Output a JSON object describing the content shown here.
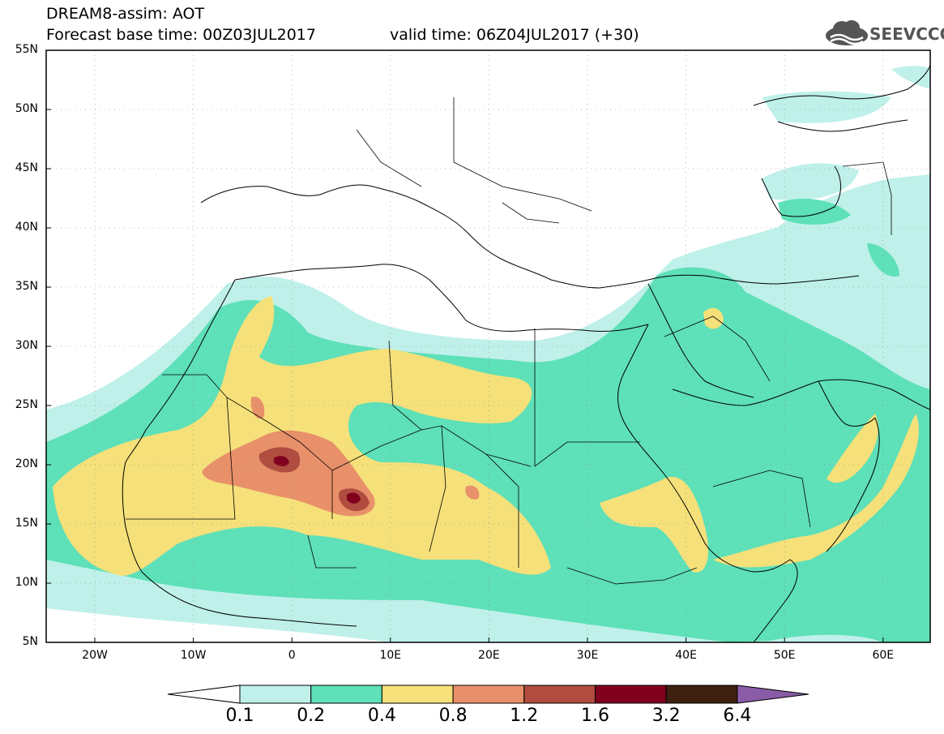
{
  "header": {
    "line1": "DREAM8-assim: AOT",
    "line2": "Forecast base time: 00Z03JUL2017",
    "valid": "valid time: 06Z04JUL2017 (+30)"
  },
  "logo": {
    "text": "SEEVCCC",
    "icon": "cloud-icon"
  },
  "map": {
    "lat_labels": [
      "55N",
      "50N",
      "45N",
      "40N",
      "35N",
      "30N",
      "25N",
      "20N",
      "15N",
      "10N",
      "5N"
    ],
    "lon_labels": [
      "20W",
      "10W",
      "0",
      "10E",
      "20E",
      "30E",
      "40E",
      "50E",
      "60E"
    ],
    "grid": true
  },
  "colorbar": {
    "labels": [
      "0.1",
      "0.2",
      "0.4",
      "0.8",
      "1.2",
      "1.6",
      "3.2",
      "6.4"
    ],
    "colors": [
      "#ffffff",
      "#bff0ea",
      "#5ee0b8",
      "#f5e07a",
      "#e8906a",
      "#b04c40",
      "#80001e",
      "#3d2010",
      "#8a5ca8"
    ]
  },
  "fields": {
    "c01": "#bff0ea",
    "c02": "#5ee0b8",
    "c04": "#f5e07a",
    "c08": "#e8906a",
    "c12": "#b04c40",
    "c16": "#80001e"
  }
}
